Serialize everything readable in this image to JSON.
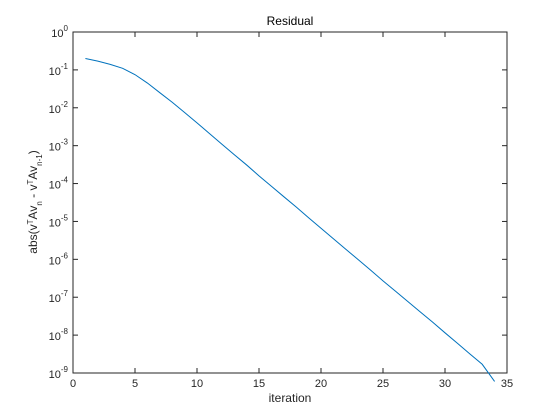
{
  "chart_data": {
    "type": "line",
    "title": "Residual",
    "xlabel": "iteration",
    "ylabel": {
      "parts": [
        "abs(v",
        "T",
        "Av",
        "n",
        " - v",
        "T",
        "Av",
        "n-1",
        ")"
      ]
    },
    "xlim": [
      0,
      35
    ],
    "ylim": [
      1e-09,
      1
    ],
    "y_scale": "log",
    "grid": false,
    "x_ticks": [
      0,
      5,
      10,
      15,
      20,
      25,
      30,
      35
    ],
    "y_tick_exponents": [
      0,
      -1,
      -2,
      -3,
      -4,
      -5,
      -6,
      -7,
      -8,
      -9
    ],
    "y_tick_base": "10",
    "line_color": "#0072bd",
    "series": [
      {
        "x": [
          1,
          2,
          3,
          4,
          5,
          6,
          7,
          8,
          9,
          10,
          11,
          12,
          13,
          14,
          15,
          16,
          17,
          18,
          19,
          20,
          21,
          22,
          23,
          24,
          25,
          26,
          27,
          28,
          29,
          30,
          31,
          32,
          33,
          34
        ],
        "y": [
          0.2,
          0.17,
          0.14,
          0.11,
          0.075,
          0.045,
          0.025,
          0.014,
          0.0075,
          0.004,
          0.0021,
          0.0011,
          0.00058,
          0.00031,
          0.00016,
          8.5e-05,
          4.5e-05,
          2.4e-05,
          1.25e-05,
          6.6e-06,
          3.5e-06,
          1.85e-06,
          9.8e-07,
          5.2e-07,
          2.7e-07,
          1.45e-07,
          7.7e-08,
          4.1e-08,
          2.2e-08,
          1.15e-08,
          6.1e-09,
          3.2e-09,
          1.7e-09,
          6e-10
        ]
      }
    ]
  }
}
